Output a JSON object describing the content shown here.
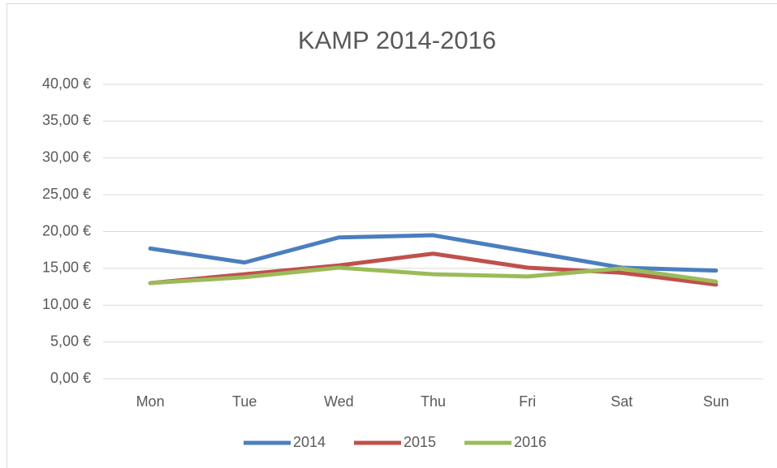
{
  "chart_data": {
    "type": "line",
    "title": "KAMP 2014-2016",
    "categories": [
      "Mon",
      "Tue",
      "Wed",
      "Thu",
      "Fri",
      "Sat",
      "Sun"
    ],
    "series": [
      {
        "name": "2014",
        "color": "#4a7ebf",
        "values": [
          17.7,
          15.8,
          19.2,
          19.5,
          17.3,
          15.1,
          14.7
        ]
      },
      {
        "name": "2015",
        "color": "#c0504d",
        "values": [
          13.0,
          14.2,
          15.4,
          17.0,
          15.1,
          14.4,
          12.8
        ]
      },
      {
        "name": "2016",
        "color": "#9bbb59",
        "values": [
          13.0,
          13.8,
          15.1,
          14.2,
          13.9,
          15.0,
          13.2
        ]
      }
    ],
    "ylim": [
      0,
      40
    ],
    "yticks": [
      {
        "value": 0,
        "label": "0,00 €"
      },
      {
        "value": 5,
        "label": "5,00 €"
      },
      {
        "value": 10,
        "label": "10,00 €"
      },
      {
        "value": 15,
        "label": "15,00 €"
      },
      {
        "value": 20,
        "label": "20,00 €"
      },
      {
        "value": 25,
        "label": "25,00 €"
      },
      {
        "value": 30,
        "label": "30,00 €"
      },
      {
        "value": 35,
        "label": "35,00 €"
      },
      {
        "value": 40,
        "label": "40,00 €"
      }
    ],
    "grid": true,
    "legend": "bottom"
  }
}
